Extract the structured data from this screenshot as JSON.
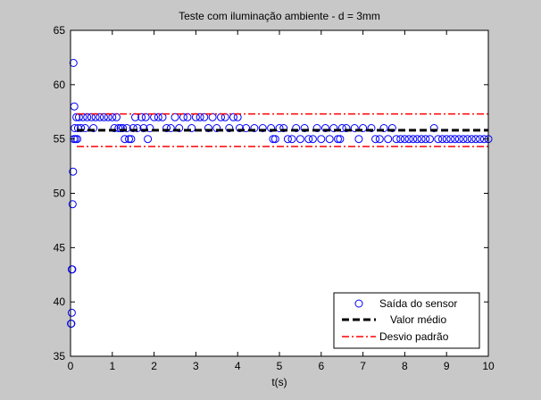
{
  "chart_data": {
    "type": "scatter",
    "title": "Teste com iluminação ambiente - d = 3mm",
    "xlabel": "t(s)",
    "ylabel": "",
    "xlim": [
      0,
      10
    ],
    "ylim": [
      35,
      65
    ],
    "xticks": [
      "0",
      "1",
      "2",
      "3",
      "4",
      "5",
      "6",
      "7",
      "8",
      "9",
      "10"
    ],
    "yticks": [
      "35",
      "40",
      "45",
      "50",
      "55",
      "60",
      "65"
    ],
    "grid": false,
    "legend_position": "bottom-right",
    "colors": {
      "figure_bg": "#c8c8c8",
      "axes_bg": "#ffffff",
      "sensor": "#0000ff",
      "mean": "#000000",
      "std": "#ff0000"
    },
    "series": [
      {
        "name": "Saída do sensor",
        "style": "markers-circle",
        "note": "dense series; representative samples",
        "points": [
          [
            0.01,
            38
          ],
          [
            0.02,
            38
          ],
          [
            0.03,
            39
          ],
          [
            0.03,
            43
          ],
          [
            0.04,
            43
          ],
          [
            0.05,
            49
          ],
          [
            0.06,
            52
          ],
          [
            0.07,
            62
          ],
          [
            0.08,
            55
          ],
          [
            0.09,
            58
          ],
          [
            0.1,
            56
          ],
          [
            0.12,
            55
          ],
          [
            0.14,
            57
          ],
          [
            0.16,
            55
          ],
          [
            0.18,
            56
          ],
          [
            0.2,
            57
          ],
          [
            0.25,
            56
          ],
          [
            0.3,
            57
          ],
          [
            0.35,
            56
          ],
          [
            0.4,
            57
          ],
          [
            0.5,
            57
          ],
          [
            0.55,
            56
          ],
          [
            0.6,
            57
          ],
          [
            0.7,
            57
          ],
          [
            0.8,
            57
          ],
          [
            0.9,
            57
          ],
          [
            1.0,
            57
          ],
          [
            1.05,
            56
          ],
          [
            1.1,
            57
          ],
          [
            1.15,
            56
          ],
          [
            1.2,
            56
          ],
          [
            1.25,
            56
          ],
          [
            1.3,
            55
          ],
          [
            1.35,
            56
          ],
          [
            1.4,
            55
          ],
          [
            1.45,
            55
          ],
          [
            1.5,
            56
          ],
          [
            1.55,
            57
          ],
          [
            1.6,
            56
          ],
          [
            1.7,
            57
          ],
          [
            1.75,
            56
          ],
          [
            1.8,
            57
          ],
          [
            1.85,
            55
          ],
          [
            1.9,
            56
          ],
          [
            2.0,
            57
          ],
          [
            2.1,
            57
          ],
          [
            2.2,
            57
          ],
          [
            2.3,
            56
          ],
          [
            2.4,
            56
          ],
          [
            2.5,
            57
          ],
          [
            2.6,
            56
          ],
          [
            2.7,
            57
          ],
          [
            2.8,
            57
          ],
          [
            2.9,
            56
          ],
          [
            3.0,
            57
          ],
          [
            3.1,
            57
          ],
          [
            3.2,
            57
          ],
          [
            3.3,
            56
          ],
          [
            3.4,
            57
          ],
          [
            3.5,
            56
          ],
          [
            3.6,
            57
          ],
          [
            3.7,
            57
          ],
          [
            3.8,
            56
          ],
          [
            3.9,
            57
          ],
          [
            4.0,
            57
          ],
          [
            4.05,
            56
          ],
          [
            4.2,
            56
          ],
          [
            4.4,
            56
          ],
          [
            4.6,
            56
          ],
          [
            4.8,
            56
          ],
          [
            4.85,
            55
          ],
          [
            4.9,
            55
          ],
          [
            5.0,
            56
          ],
          [
            5.1,
            56
          ],
          [
            5.2,
            55
          ],
          [
            5.3,
            55
          ],
          [
            5.4,
            56
          ],
          [
            5.5,
            55
          ],
          [
            5.6,
            56
          ],
          [
            5.7,
            55
          ],
          [
            5.8,
            55
          ],
          [
            5.9,
            56
          ],
          [
            6.0,
            55
          ],
          [
            6.1,
            56
          ],
          [
            6.2,
            55
          ],
          [
            6.3,
            56
          ],
          [
            6.4,
            55
          ],
          [
            6.45,
            55
          ],
          [
            6.5,
            56
          ],
          [
            6.6,
            56
          ],
          [
            6.8,
            56
          ],
          [
            6.9,
            55
          ],
          [
            7.0,
            56
          ],
          [
            7.2,
            56
          ],
          [
            7.3,
            55
          ],
          [
            7.4,
            55
          ],
          [
            7.5,
            56
          ],
          [
            7.6,
            55
          ],
          [
            7.7,
            56
          ],
          [
            7.8,
            55
          ],
          [
            7.9,
            55
          ],
          [
            8.0,
            55
          ],
          [
            8.1,
            55
          ],
          [
            8.2,
            55
          ],
          [
            8.3,
            55
          ],
          [
            8.4,
            55
          ],
          [
            8.5,
            55
          ],
          [
            8.6,
            55
          ],
          [
            8.7,
            56
          ],
          [
            8.8,
            55
          ],
          [
            8.9,
            55
          ],
          [
            9.0,
            55
          ],
          [
            9.1,
            55
          ],
          [
            9.2,
            55
          ],
          [
            9.3,
            55
          ],
          [
            9.4,
            55
          ],
          [
            9.5,
            55
          ],
          [
            9.6,
            55
          ],
          [
            9.7,
            55
          ],
          [
            9.8,
            55
          ],
          [
            9.9,
            55
          ],
          [
            10.0,
            55
          ]
        ]
      },
      {
        "name": "Valor médio",
        "style": "dashed",
        "y": 55.8,
        "x_range": [
          0.15,
          10
        ]
      },
      {
        "name": "Desvio padrão",
        "style": "dash-dot",
        "y_values": [
          57.3,
          54.3
        ],
        "x_range": [
          0.15,
          10
        ]
      }
    ]
  }
}
